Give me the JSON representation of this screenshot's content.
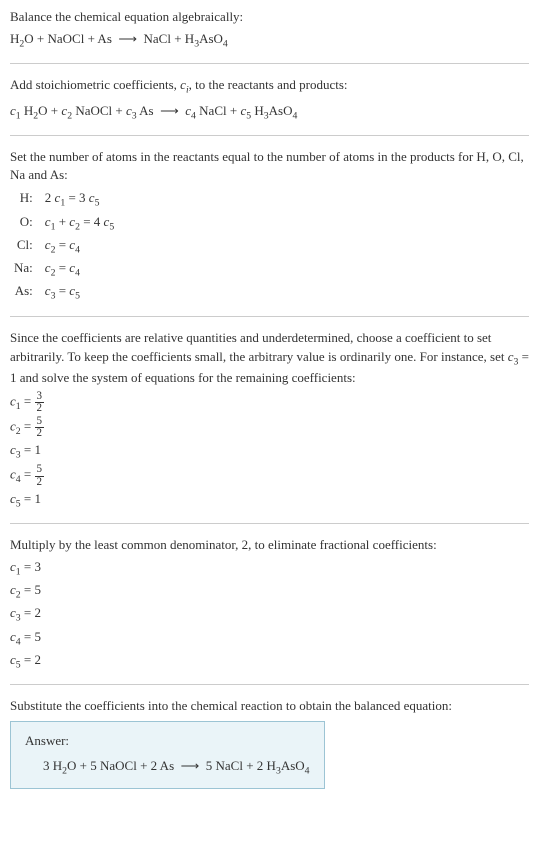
{
  "section1": {
    "title": "Balance the chemical equation algebraically:",
    "equation_html": "H<sub>2</sub>O + NaOCl + As &nbsp;⟶&nbsp; NaCl + H<sub>3</sub>AsO<sub>4</sub>"
  },
  "section2": {
    "title_html": "Add stoichiometric coefficients, <span class='italic'>c<sub>i</sub></span>, to the reactants and products:",
    "equation_html": "<span class='italic'>c</span><sub>1</sub> H<sub>2</sub>O + <span class='italic'>c</span><sub>2</sub> NaOCl + <span class='italic'>c</span><sub>3</sub> As &nbsp;⟶&nbsp; <span class='italic'>c</span><sub>4</sub> NaCl + <span class='italic'>c</span><sub>5</sub> H<sub>3</sub>AsO<sub>4</sub>"
  },
  "section3": {
    "title": "Set the number of atoms in the reactants equal to the number of atoms in the products for H, O, Cl, Na and As:",
    "rows": [
      {
        "el": "H:",
        "eq_html": "2 <span class='italic'>c</span><sub>1</sub> = 3 <span class='italic'>c</span><sub>5</sub>"
      },
      {
        "el": "O:",
        "eq_html": "<span class='italic'>c</span><sub>1</sub> + <span class='italic'>c</span><sub>2</sub> = 4 <span class='italic'>c</span><sub>5</sub>"
      },
      {
        "el": "Cl:",
        "eq_html": "<span class='italic'>c</span><sub>2</sub> = <span class='italic'>c</span><sub>4</sub>"
      },
      {
        "el": "Na:",
        "eq_html": "<span class='italic'>c</span><sub>2</sub> = <span class='italic'>c</span><sub>4</sub>"
      },
      {
        "el": "As:",
        "eq_html": "<span class='italic'>c</span><sub>3</sub> = <span class='italic'>c</span><sub>5</sub>"
      }
    ]
  },
  "section4": {
    "title_html": "Since the coefficients are relative quantities and underdetermined, choose a coefficient to set arbitrarily. To keep the coefficients small, the arbitrary value is ordinarily one. For instance, set <span class='italic'>c</span><sub>3</sub> = 1 and solve the system of equations for the remaining coefficients:",
    "coeffs": [
      {
        "lhs_html": "<span class='italic'>c</span><sub>1</sub> = ",
        "num": "3",
        "den": "2",
        "is_frac": true
      },
      {
        "lhs_html": "<span class='italic'>c</span><sub>2</sub> = ",
        "num": "5",
        "den": "2",
        "is_frac": true
      },
      {
        "lhs_html": "<span class='italic'>c</span><sub>3</sub> = ",
        "val": "1",
        "is_frac": false
      },
      {
        "lhs_html": "<span class='italic'>c</span><sub>4</sub> = ",
        "num": "5",
        "den": "2",
        "is_frac": true
      },
      {
        "lhs_html": "<span class='italic'>c</span><sub>5</sub> = ",
        "val": "1",
        "is_frac": false
      }
    ]
  },
  "section5": {
    "title": "Multiply by the least common denominator, 2, to eliminate fractional coefficients:",
    "coeffs": [
      {
        "html": "<span class='italic'>c</span><sub>1</sub> = 3"
      },
      {
        "html": "<span class='italic'>c</span><sub>2</sub> = 5"
      },
      {
        "html": "<span class='italic'>c</span><sub>3</sub> = 2"
      },
      {
        "html": "<span class='italic'>c</span><sub>4</sub> = 5"
      },
      {
        "html": "<span class='italic'>c</span><sub>5</sub> = 2"
      }
    ]
  },
  "section6": {
    "title": "Substitute the coefficients into the chemical reaction to obtain the balanced equation:",
    "answer_label": "Answer:",
    "answer_html": "3 H<sub>2</sub>O + 5 NaOCl + 2 As &nbsp;⟶&nbsp; 5 NaCl + 2 H<sub>3</sub>AsO<sub>4</sub>"
  },
  "colors": {
    "text": "#333333",
    "divider": "#cccccc",
    "answer_border": "#9cc4d4",
    "answer_bg": "#eaf4f8",
    "background": "#ffffff"
  }
}
